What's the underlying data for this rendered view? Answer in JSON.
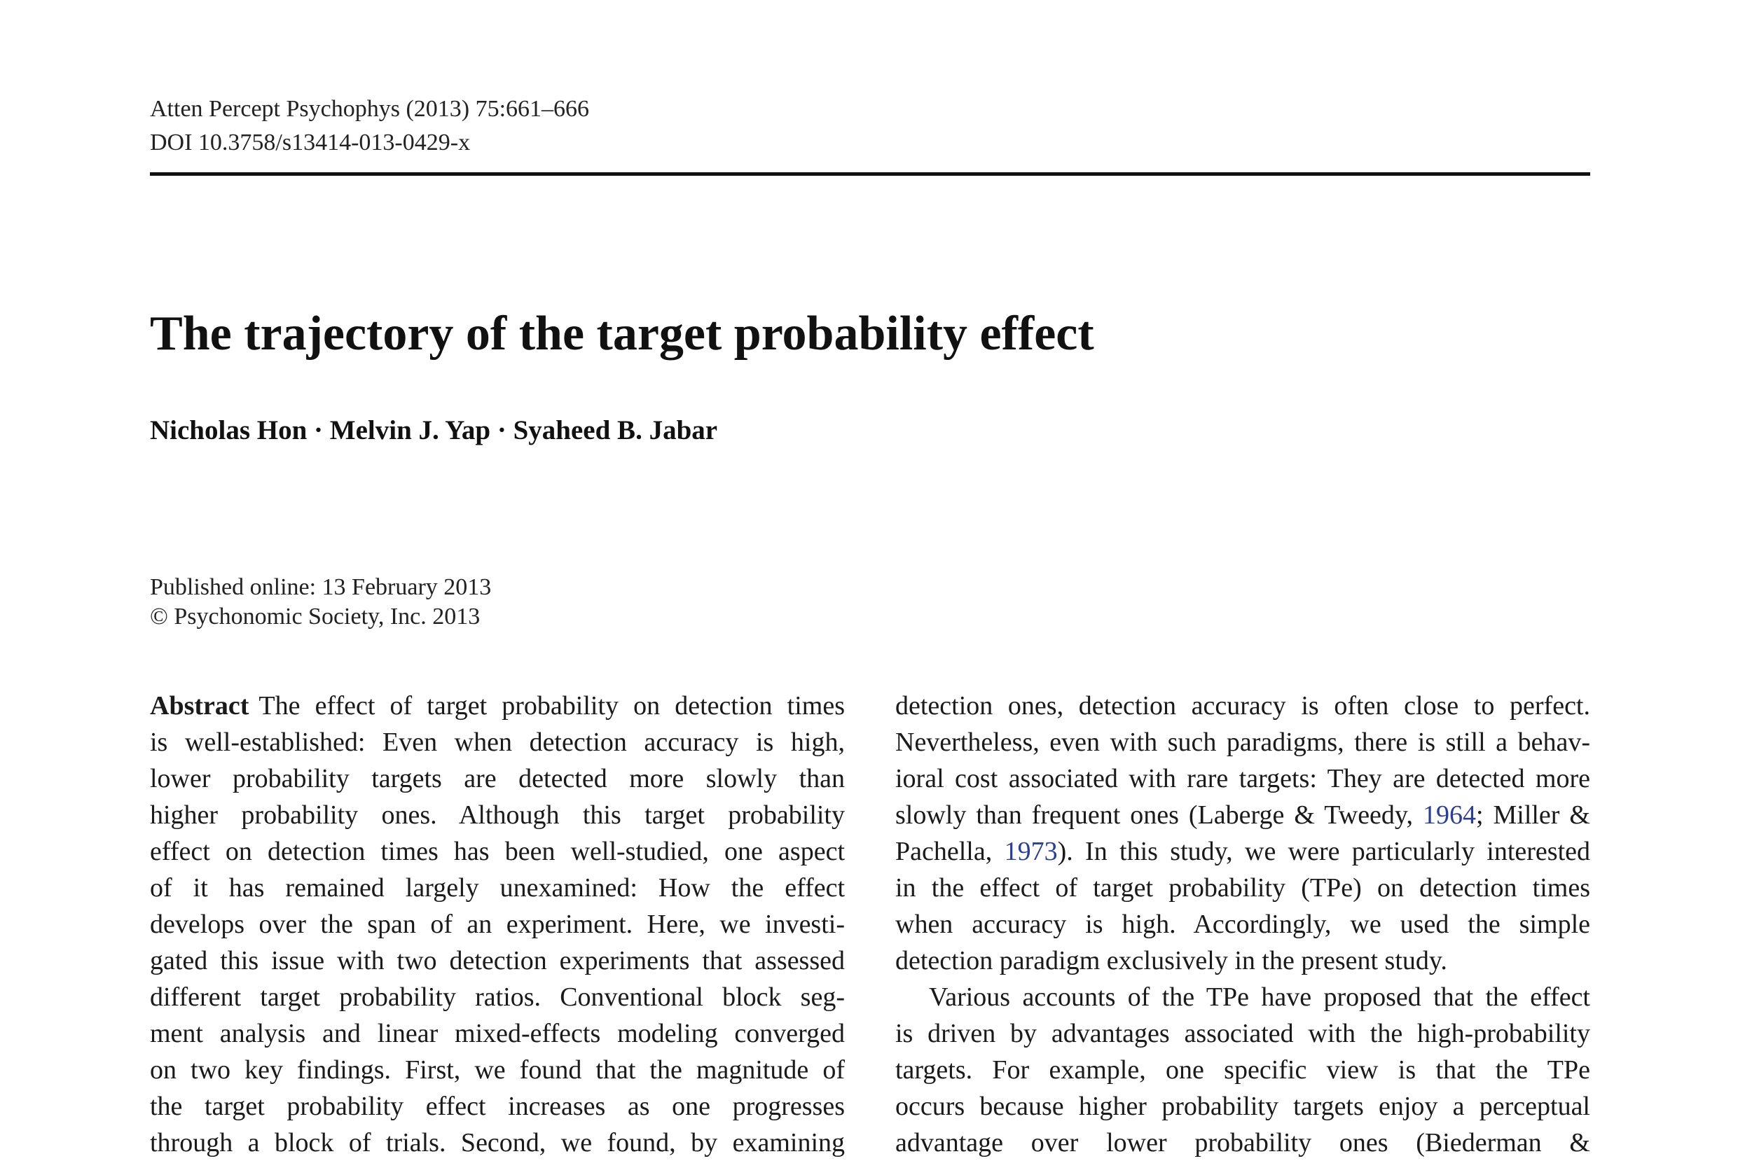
{
  "header": {
    "journal_line": "Atten Percept Psychophys (2013) 75:661–666",
    "doi_line": "DOI 10.3758/s13414-013-0429-x"
  },
  "article": {
    "title": "The trajectory of the target probability effect",
    "authors": "Nicholas Hon · Melvin J. Yap · Syaheed B. Jabar",
    "published_online": "Published online: 13 February 2013",
    "copyright": "© Psychonomic Society, Inc. 2013"
  },
  "left_column": {
    "abstract_label": "Abstract",
    "lines": [
      "The effect of target probability on detection times",
      "is well-established: Even when detection accuracy is high,",
      "lower probability targets are detected more slowly than",
      "higher probability ones. Although this target probability",
      "effect on detection times has been well-studied, one aspect",
      "of it has remained largely unexamined: How the effect",
      "develops over the span of an experiment. Here, we investi-",
      "gated this issue with two detection experiments that assessed",
      "different target probability ratios. Conventional block seg-",
      "ment analysis and linear mixed-effects modeling converged",
      "on two key findings. First, we found that the magnitude of",
      "the target probability effect increases as one progresses",
      "through a block of trials. Second, we found, by examining"
    ]
  },
  "right_column": {
    "lines": [
      "detection ones, detection accuracy is often close to perfect.",
      "Nevertheless, even with such paradigms, there is still a behav-",
      "ioral cost associated with rare targets: They are detected more"
    ],
    "line4_pre": "slowly than frequent ones (Laberge & Tweedy, ",
    "ref_1964": "1964",
    "line4_post": "; Miller &",
    "line5_pre": "Pachella, ",
    "ref_1973": "1973",
    "line5_post": "). In this study, we were particularly interested",
    "lines_after": [
      "in the effect of target probability (TPe) on detection times",
      "when accuracy is high. Accordingly, we used the simple"
    ],
    "para1_end": "detection paradigm exclusively in the present study.",
    "para2_lines": [
      "Various accounts of the TPe have proposed that the effect",
      "is driven by advantages associated with the high-probability",
      "targets. For example, one specific view is that the TPe",
      "occurs because higher probability targets enjoy a perceptual",
      "advantage over lower probability ones (Biederman &"
    ]
  }
}
